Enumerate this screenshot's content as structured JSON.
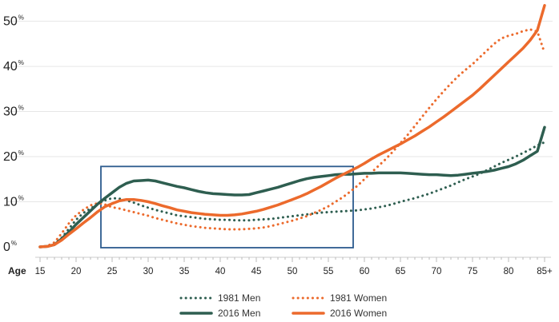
{
  "chart_data": {
    "type": "line",
    "title": "",
    "xlabel": "Age",
    "ylabel": "",
    "x_tick_labels": [
      "15",
      "20",
      "25",
      "30",
      "35",
      "40",
      "45",
      "50",
      "55",
      "60",
      "65",
      "70",
      "75",
      "80",
      "85+"
    ],
    "y_ticks": [
      {
        "value": 0,
        "num": "0",
        "suffix": "%"
      },
      {
        "value": 10,
        "num": "10",
        "suffix": "%"
      },
      {
        "value": 20,
        "num": "20",
        "suffix": "%"
      },
      {
        "value": 30,
        "num": "30",
        "suffix": "%"
      },
      {
        "value": 40,
        "num": "40",
        "suffix": "%"
      },
      {
        "value": 50,
        "num": "50",
        "suffix": "%"
      }
    ],
    "xlim": [
      15,
      85
    ],
    "ylim": [
      0,
      54
    ],
    "highlight_box": {
      "x_from": 25,
      "x_to": 58,
      "y_from": 0,
      "y_to": 18
    },
    "colors": {
      "men": "#2e5e50",
      "women": "#ec6a2c",
      "box": "#2c5b8e"
    },
    "series": [
      {
        "name": "1981 Men",
        "color": "#2e5e50",
        "style": "dotted",
        "x": [
          15,
          16,
          17,
          18,
          19,
          20,
          21,
          22,
          23,
          24,
          25,
          26,
          27,
          28,
          29,
          30,
          31,
          32,
          33,
          34,
          35,
          36,
          37,
          38,
          39,
          40,
          41,
          42,
          43,
          44,
          45,
          46,
          47,
          48,
          49,
          50,
          51,
          52,
          53,
          54,
          55,
          56,
          57,
          58,
          59,
          60,
          61,
          62,
          63,
          64,
          65,
          66,
          67,
          68,
          69,
          70,
          71,
          72,
          73,
          74,
          75,
          76,
          77,
          78,
          79,
          80,
          81,
          82,
          83,
          84,
          85
        ],
        "y": [
          0,
          0.1,
          0.6,
          2,
          4,
          6,
          7.5,
          8.5,
          9.5,
          10.3,
          10.8,
          10.7,
          10.3,
          9.8,
          9.2,
          8.7,
          8.2,
          7.8,
          7.4,
          7.0,
          6.8,
          6.6,
          6.4,
          6.2,
          6.1,
          6.0,
          6.0,
          5.9,
          5.9,
          5.9,
          6.0,
          6.1,
          6.2,
          6.4,
          6.6,
          6.8,
          7.0,
          7.2,
          7.4,
          7.6,
          7.7,
          7.8,
          7.9,
          8.0,
          8.1,
          8.3,
          8.5,
          8.8,
          9.1,
          9.5,
          10,
          10.4,
          10.8,
          11.3,
          11.8,
          12.4,
          13,
          13.6,
          14.3,
          15,
          15.6,
          16.2,
          17,
          17.8,
          18.6,
          19.3,
          20,
          20.8,
          21.6,
          22.5,
          23.2
        ]
      },
      {
        "name": "1981 Women",
        "color": "#ec6a2c",
        "style": "dotted",
        "x": [
          15,
          16,
          17,
          18,
          19,
          20,
          21,
          22,
          23,
          24,
          25,
          26,
          27,
          28,
          29,
          30,
          31,
          32,
          33,
          34,
          35,
          36,
          37,
          38,
          39,
          40,
          41,
          42,
          43,
          44,
          45,
          46,
          47,
          48,
          49,
          50,
          51,
          52,
          53,
          54,
          55,
          56,
          57,
          58,
          59,
          60,
          61,
          62,
          63,
          64,
          65,
          66,
          67,
          68,
          69,
          70,
          71,
          72,
          73,
          74,
          75,
          76,
          77,
          78,
          79,
          80,
          81,
          82,
          83,
          84,
          85
        ],
        "y": [
          0,
          0.2,
          1,
          3,
          5.2,
          7,
          8.2,
          9.2,
          9.7,
          9.4,
          8.8,
          8.5,
          8.1,
          7.7,
          7.3,
          6.9,
          6.4,
          6.0,
          5.6,
          5.2,
          4.9,
          4.6,
          4.4,
          4.2,
          4.1,
          4.0,
          3.9,
          3.9,
          3.9,
          4.0,
          4.1,
          4.3,
          4.6,
          5.0,
          5.4,
          5.8,
          6.3,
          6.8,
          7.5,
          8.2,
          9.0,
          10,
          11,
          12.2,
          13.5,
          15,
          16.5,
          18,
          19.5,
          21.2,
          23,
          24.8,
          26.8,
          28.8,
          30.8,
          32.7,
          34.5,
          36.2,
          37.8,
          39.2,
          40.5,
          42,
          43.5,
          45,
          46.2,
          46.8,
          47.2,
          47.8,
          48.2,
          47.7,
          43
        ]
      },
      {
        "name": "2016 Men",
        "color": "#2e5e50",
        "style": "solid",
        "x": [
          15,
          16,
          17,
          18,
          19,
          20,
          21,
          22,
          23,
          24,
          25,
          26,
          27,
          28,
          29,
          30,
          31,
          32,
          33,
          34,
          35,
          36,
          37,
          38,
          39,
          40,
          41,
          42,
          43,
          44,
          45,
          46,
          47,
          48,
          49,
          50,
          51,
          52,
          53,
          54,
          55,
          56,
          57,
          58,
          59,
          60,
          61,
          62,
          63,
          64,
          65,
          66,
          67,
          68,
          69,
          70,
          71,
          72,
          73,
          74,
          75,
          76,
          77,
          78,
          79,
          80,
          81,
          82,
          83,
          84,
          85
        ],
        "y": [
          0,
          0.1,
          0.5,
          1.8,
          3.3,
          5,
          6.5,
          8,
          9.5,
          10.8,
          12,
          13.2,
          14.1,
          14.6,
          14.7,
          14.8,
          14.6,
          14.2,
          13.8,
          13.4,
          13.1,
          12.7,
          12.3,
          12.0,
          11.8,
          11.7,
          11.6,
          11.5,
          11.5,
          11.6,
          12.0,
          12.4,
          12.8,
          13.2,
          13.7,
          14.2,
          14.7,
          15.1,
          15.4,
          15.6,
          15.8,
          16.0,
          16.1,
          16.1,
          16.2,
          16.3,
          16.3,
          16.4,
          16.4,
          16.4,
          16.4,
          16.3,
          16.2,
          16.1,
          16.0,
          16.0,
          15.9,
          15.8,
          15.9,
          16.1,
          16.3,
          16.5,
          16.7,
          17.0,
          17.4,
          17.8,
          18.4,
          19.2,
          20.2,
          21.2,
          26.5
        ]
      },
      {
        "name": "2016 Women",
        "color": "#ec6a2c",
        "style": "solid",
        "x": [
          15,
          16,
          17,
          18,
          19,
          20,
          21,
          22,
          23,
          24,
          25,
          26,
          27,
          28,
          29,
          30,
          31,
          32,
          33,
          34,
          35,
          36,
          37,
          38,
          39,
          40,
          41,
          42,
          43,
          44,
          45,
          46,
          47,
          48,
          49,
          50,
          51,
          52,
          53,
          54,
          55,
          56,
          57,
          58,
          59,
          60,
          61,
          62,
          63,
          64,
          65,
          66,
          67,
          68,
          69,
          70,
          71,
          72,
          73,
          74,
          75,
          76,
          77,
          78,
          79,
          80,
          81,
          82,
          83,
          84,
          85
        ],
        "y": [
          0,
          0.1,
          0.5,
          1.5,
          2.8,
          4,
          5.3,
          6.5,
          7.8,
          8.9,
          9.6,
          10.2,
          10.5,
          10.5,
          10.3,
          10.0,
          9.6,
          9.1,
          8.7,
          8.2,
          7.9,
          7.6,
          7.4,
          7.2,
          7.1,
          7.0,
          7.0,
          7.1,
          7.3,
          7.6,
          7.9,
          8.3,
          8.8,
          9.3,
          9.9,
          10.5,
          11.1,
          11.8,
          12.6,
          13.4,
          14.3,
          15.2,
          16.0,
          16.8,
          17.6,
          18.5,
          19.5,
          20.4,
          21.2,
          22,
          22.8,
          23.7,
          24.6,
          25.6,
          26.6,
          27.7,
          28.8,
          30,
          31.2,
          32.4,
          33.6,
          35,
          36.5,
          38,
          39.5,
          41,
          42.5,
          44,
          45.8,
          48,
          53.5
        ]
      }
    ]
  }
}
